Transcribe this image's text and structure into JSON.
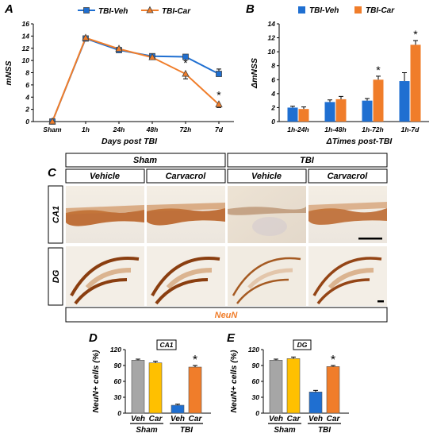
{
  "panels": {
    "a": {
      "label": "A"
    },
    "b": {
      "label": "B"
    },
    "c": {
      "label": "C",
      "header_groups": [
        "Sham",
        "TBI"
      ],
      "treatments": [
        "Vehicle",
        "Carvacrol",
        "Vehicle",
        "Carvacrol"
      ],
      "rows": [
        "CA1",
        "DG"
      ],
      "stain": "NeuN"
    },
    "d": {
      "label": "D"
    },
    "e": {
      "label": "E"
    }
  },
  "colors": {
    "veh": "#1f6fd1",
    "car": "#f07d2a",
    "sham_veh": "#a6a6a6",
    "sham_car": "#ffc000",
    "tbi_veh": "#1f6fd1",
    "tbi_car": "#f07d2a",
    "stain": "#f07d2a",
    "tissue": "#b65a1c"
  },
  "chart_data": [
    {
      "type": "line",
      "title": "",
      "xlabel": "Days post TBI",
      "ylabel": "mNSS",
      "categories": [
        "Sham",
        "1h",
        "24h",
        "48h",
        "72h",
        "7d"
      ],
      "ylim": [
        0,
        16
      ],
      "yticks": [
        0,
        2,
        4,
        6,
        8,
        10,
        12,
        14,
        16
      ],
      "legend_position": "top",
      "series": [
        {
          "name": "TBI-Veh",
          "values": [
            0,
            13.6,
            11.7,
            10.7,
            10.6,
            7.8
          ],
          "errors": [
            0,
            0.3,
            0.3,
            0.2,
            0.3,
            0.8
          ]
        },
        {
          "name": "TBI-Car",
          "values": [
            0,
            13.7,
            11.9,
            10.5,
            7.8,
            2.8
          ],
          "errors": [
            0,
            0.3,
            0.3,
            0.3,
            0.8,
            0.5
          ]
        }
      ],
      "significance": [
        "",
        "",
        "",
        "",
        "*",
        "*"
      ]
    },
    {
      "type": "bar",
      "title": "",
      "xlabel": "ΔTimes post-TBI",
      "ylabel": "ΔmNSS",
      "categories": [
        "1h-24h",
        "1h-48h",
        "1h-72h",
        "1h-7d"
      ],
      "ylim": [
        0,
        14
      ],
      "yticks": [
        0,
        2,
        4,
        6,
        8,
        10,
        12,
        14
      ],
      "legend_position": "top",
      "series": [
        {
          "name": "TBI-Veh",
          "values": [
            2.0,
            2.8,
            3.0,
            5.8
          ],
          "errors": [
            0.2,
            0.3,
            0.3,
            1.2
          ]
        },
        {
          "name": "TBI-Car",
          "values": [
            1.8,
            3.2,
            6.0,
            11.0
          ],
          "errors": [
            0.3,
            0.4,
            0.5,
            0.6
          ]
        }
      ],
      "significance": [
        "",
        "",
        "*",
        "*"
      ]
    },
    {
      "type": "bar",
      "title": "CA1",
      "xlabel": "",
      "ylabel": "NeuN+ cells (%)",
      "categories": [
        "Veh",
        "Car",
        "Veh",
        "Car"
      ],
      "groups": [
        "Sham",
        "TBI"
      ],
      "ylim": [
        0,
        120
      ],
      "yticks": [
        0,
        30,
        60,
        90,
        120
      ],
      "values": [
        100,
        95,
        15,
        87
      ],
      "errors": [
        2,
        3,
        2,
        3
      ],
      "significance": [
        "",
        "",
        "",
        "*"
      ]
    },
    {
      "type": "bar",
      "title": "DG",
      "xlabel": "",
      "ylabel": "NeuN+ cells (%)",
      "categories": [
        "Veh",
        "Car",
        "Veh",
        "Car"
      ],
      "groups": [
        "Sham",
        "TBI"
      ],
      "ylim": [
        0,
        120
      ],
      "yticks": [
        0,
        30,
        60,
        90,
        120
      ],
      "values": [
        100,
        103,
        40,
        88
      ],
      "errors": [
        2,
        3,
        3,
        2
      ],
      "significance": [
        "",
        "",
        "",
        "*"
      ]
    }
  ]
}
